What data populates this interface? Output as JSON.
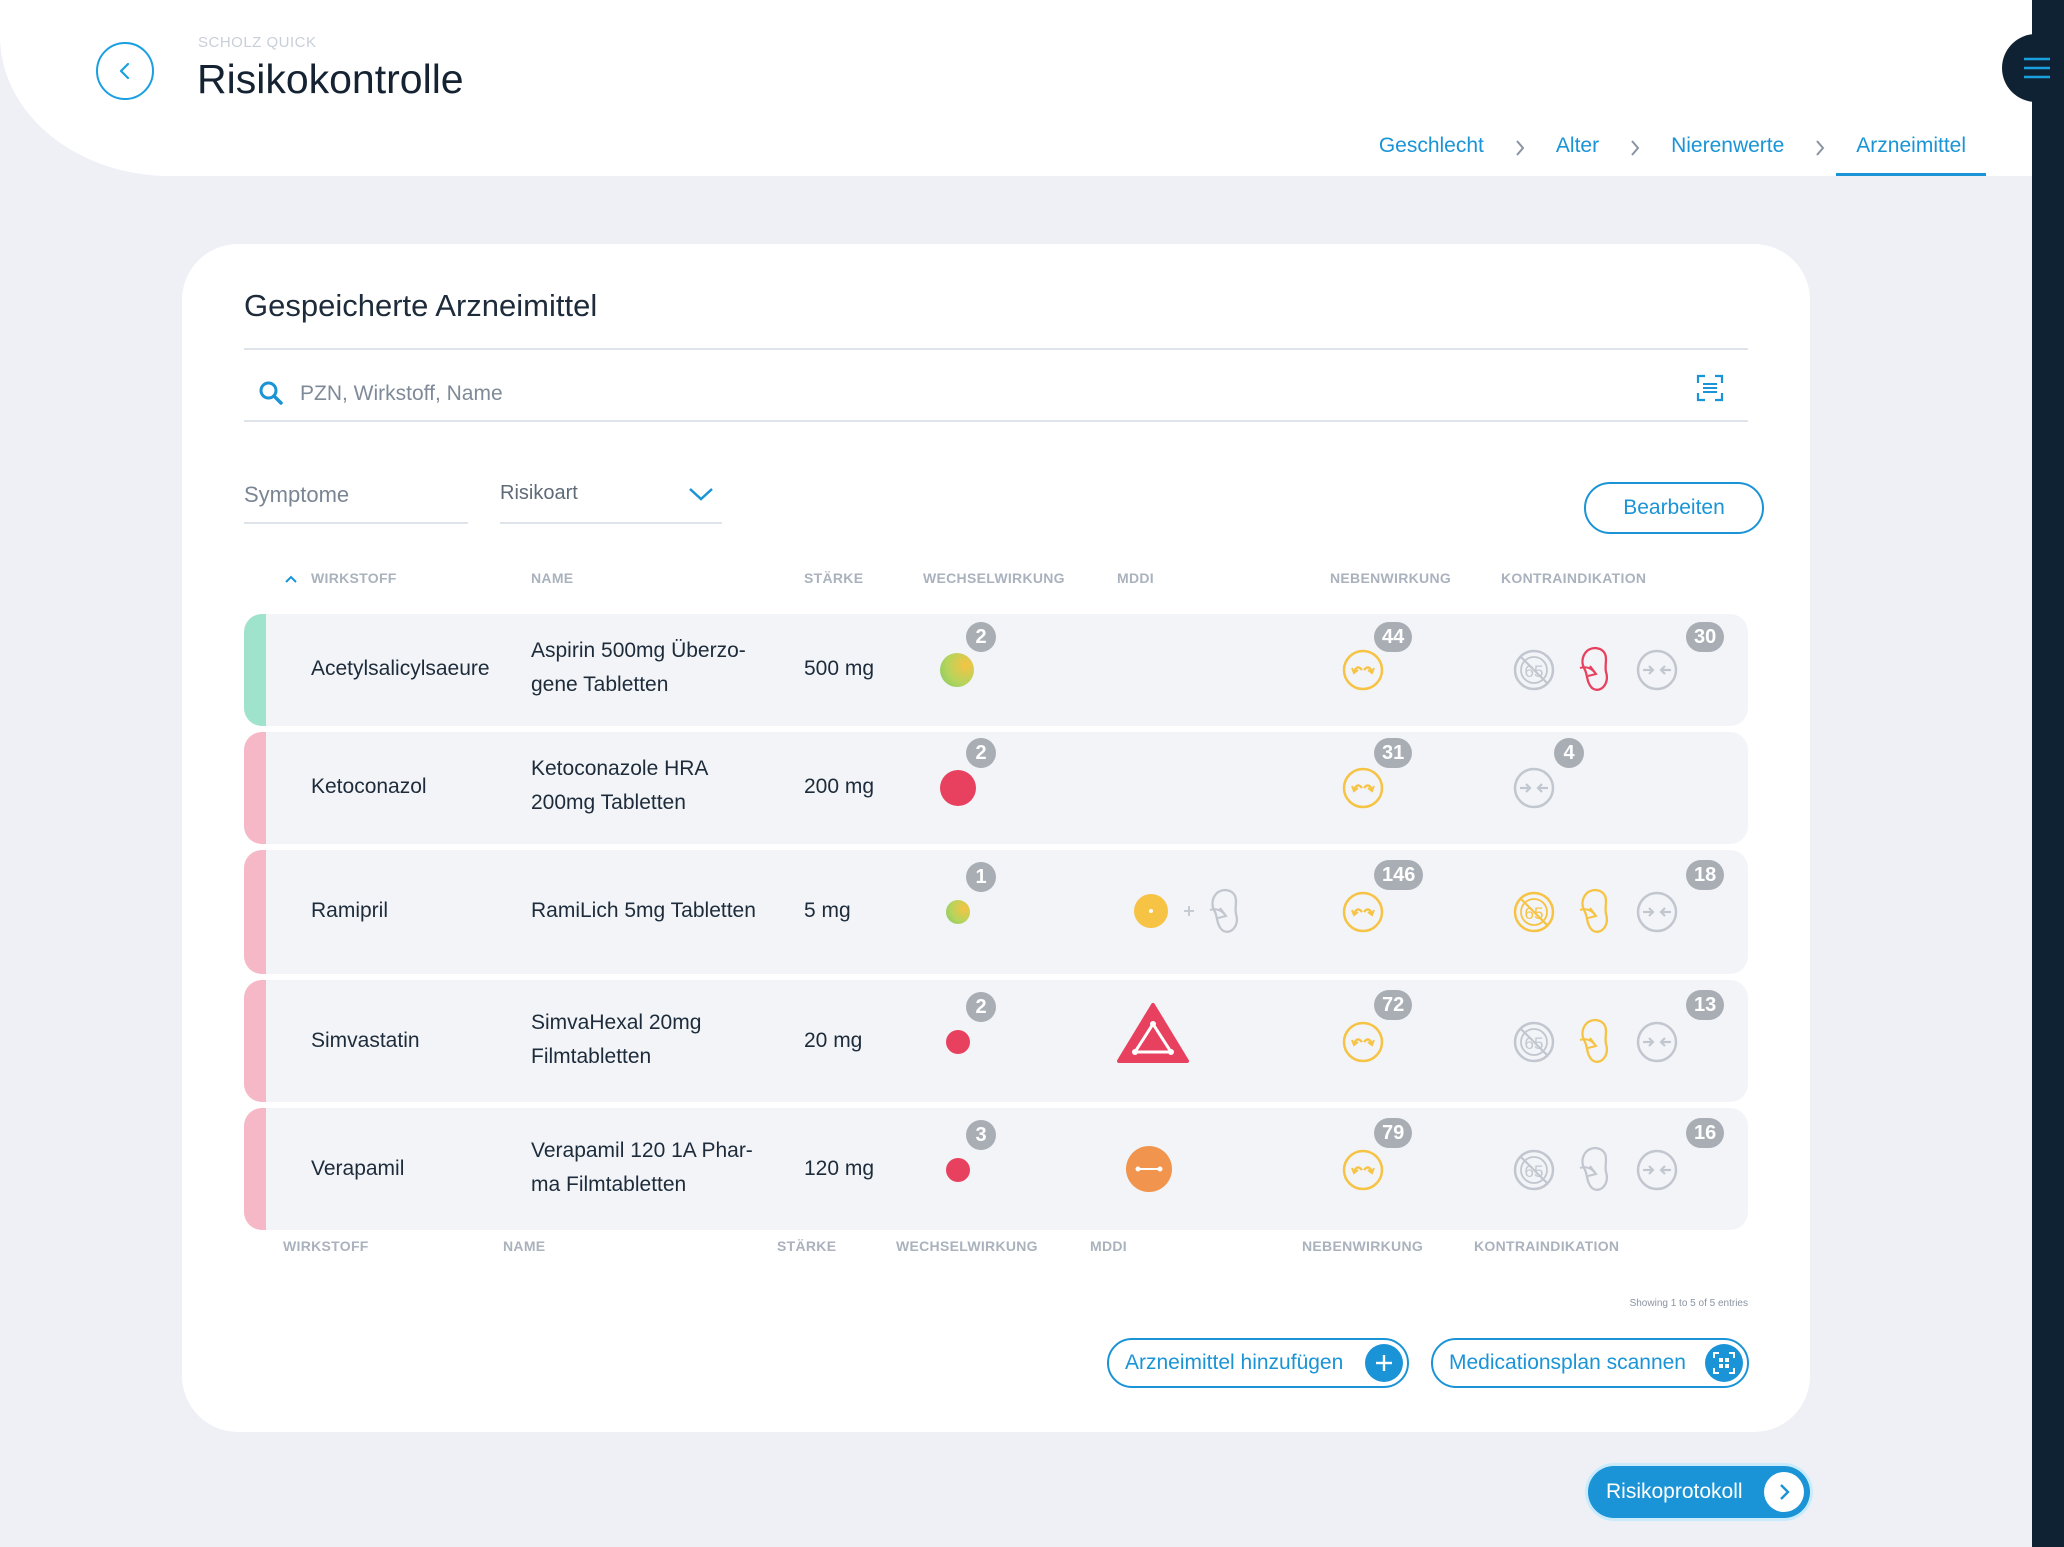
{
  "header": {
    "app_label": "SCHOLZ QUICK",
    "title": "Risikokontrolle",
    "steps": [
      {
        "label": "Geschlecht"
      },
      {
        "label": "Alter"
      },
      {
        "label": "Nierenwerte"
      },
      {
        "label": "Arzneimittel",
        "active": true
      }
    ]
  },
  "card": {
    "title": "Gespeicherte Arzneimittel",
    "search": {
      "placeholder": "PZN, Wirkstoff, Name",
      "value": ""
    },
    "filters": {
      "symptome": "Symptome",
      "risikoart": "Risikoart"
    },
    "edit_label": "Bearbeiten",
    "columns": {
      "wirkstoff": "WIRKSTOFF",
      "name": "NAME",
      "staerke": "STÄRKE",
      "wechselwirkung": "WECHSELWIRKUNG",
      "mddi": "MDDI",
      "nebenwirkung": "NEBENWIRKUNG",
      "kontraindikation": "KONTRAINDIKATION"
    },
    "rows": [
      {
        "wirkstoff": "Acetylsalicylsaeure",
        "name1": "Aspirin 500mg Überzo-",
        "name2": "gene Tabletten",
        "staerke": "500 mg",
        "ww_count": "2",
        "nw_count": "44",
        "ki_count": "30",
        "accent": "#9fe3cc"
      },
      {
        "wirkstoff": "Ketoconazol",
        "name1": "Ketoconazole HRA",
        "name2": "200mg Tabletten",
        "staerke": "200 mg",
        "ww_count": "2",
        "nw_count": "31",
        "ki_count": "4",
        "accent": "#f6b8c6"
      },
      {
        "wirkstoff": "Ramipril",
        "name1": "RamiLich 5mg Tabletten",
        "name2": "",
        "staerke": "5 mg",
        "ww_count": "1",
        "nw_count": "146",
        "ki_count": "18",
        "accent": "#f6b8c6"
      },
      {
        "wirkstoff": "Simvastatin",
        "name1": "SimvaHexal 20mg",
        "name2": "Filmtabletten",
        "staerke": "20 mg",
        "ww_count": "2",
        "nw_count": "72",
        "ki_count": "13",
        "accent": "#f6b8c6"
      },
      {
        "wirkstoff": "Verapamil",
        "name1": "Verapamil 120 1A Phar-",
        "name2": "ma Filmtabletten",
        "staerke": "120 mg",
        "ww_count": "3",
        "nw_count": "79",
        "ki_count": "16",
        "accent": "#f6b8c6"
      }
    ],
    "entries_text": "Showing 1 to 5 of 5 entries",
    "add_label": "Arzneimittel hinzufügen",
    "scan_label": "Medicationsplan scannen"
  },
  "protocol_label": "Risikoprotokoll",
  "colors": {
    "accent": "#1a94d6",
    "red": "#e8415f",
    "yellow": "#f6c344",
    "orange": "#f0944e"
  },
  "icons": [
    "back-icon",
    "menu-icon",
    "search-icon",
    "scan-icon",
    "chevron-down-icon",
    "plus-icon",
    "qr-scan-icon",
    "chevron-right-icon",
    "side-effect-icon",
    "age-65-icon",
    "kidney-icon",
    "interaction-icon",
    "warning-triangle-icon"
  ]
}
